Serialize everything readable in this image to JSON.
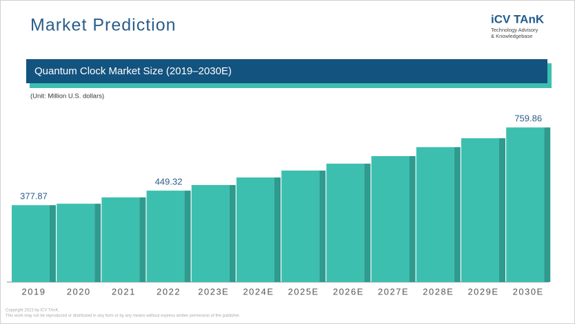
{
  "header": {
    "title": "Market Prediction",
    "logo": "iCV TAnK",
    "logo_line1": "Technology Advisory",
    "logo_line2": "& Knowledgebase"
  },
  "chart_data": {
    "type": "bar",
    "title": "Quantum Clock Market Size (2019–2030E)",
    "subtitle": "(Unit: Million U.S. dollars)",
    "categories": [
      "2019",
      "2020",
      "2021",
      "2022",
      "2023E",
      "2024E",
      "2025E",
      "2026E",
      "2027E",
      "2028E",
      "2029E",
      "2030E"
    ],
    "values": [
      377.87,
      385,
      416,
      449.32,
      477,
      514,
      548,
      582,
      619,
      663,
      707,
      759.86
    ],
    "value_labels": [
      "377.87",
      null,
      null,
      "449.32",
      null,
      null,
      null,
      null,
      null,
      null,
      null,
      "759.86"
    ],
    "color": "#3dbfb0",
    "side_color": "#2f9a8e",
    "ylim": [
      0,
      800
    ]
  },
  "footer": {
    "line1": "Copyright 2023 by ICV TAnK.",
    "line2": "This work may not be reproduced or distributed in any form or by any means without express written permission of the publisher."
  }
}
